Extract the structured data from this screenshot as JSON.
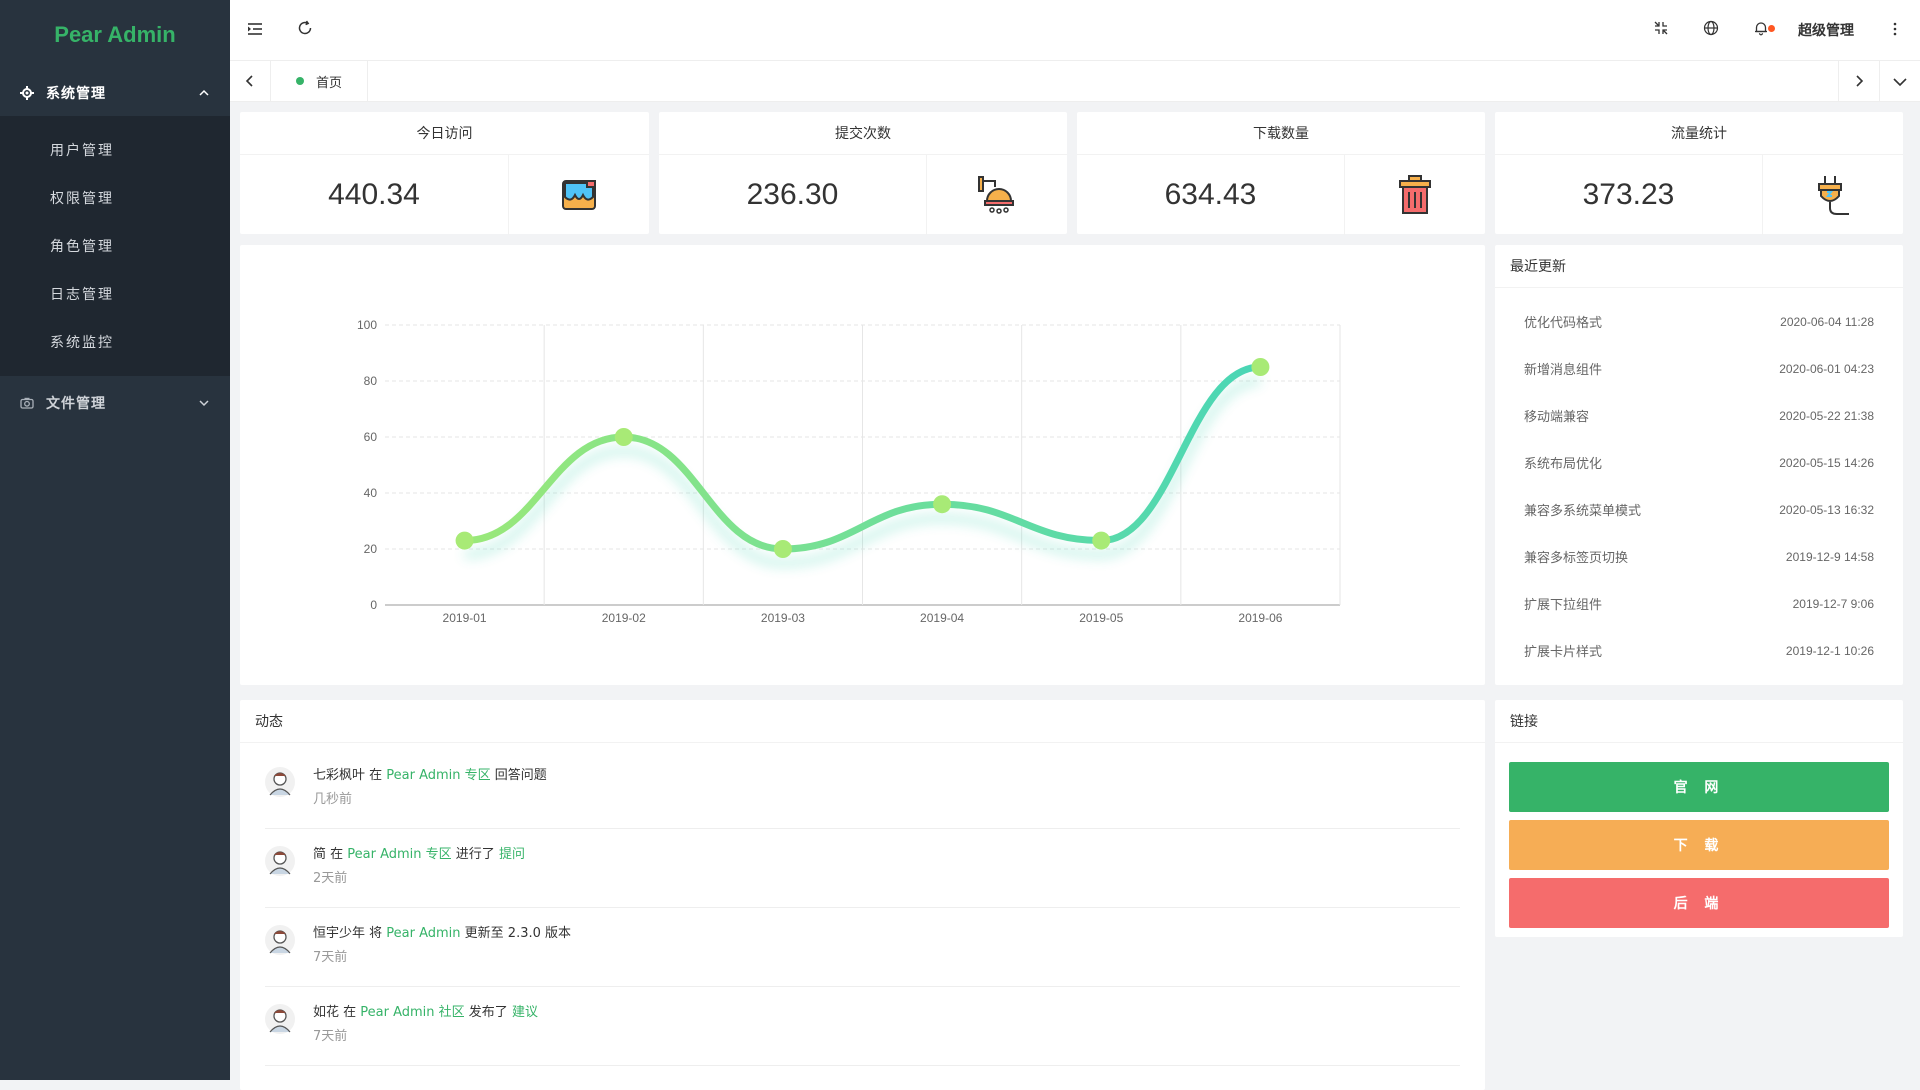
{
  "app": {
    "name": "Pear Admin"
  },
  "sidebar": {
    "groups": [
      {
        "label": "系统管理",
        "expanded": true,
        "icon": "gear-icon",
        "items": [
          {
            "label": "用户管理"
          },
          {
            "label": "权限管理"
          },
          {
            "label": "角色管理"
          },
          {
            "label": "日志管理"
          },
          {
            "label": "系统监控"
          }
        ]
      },
      {
        "label": "文件管理",
        "expanded": false,
        "icon": "camera-icon",
        "items": []
      }
    ]
  },
  "topbar": {
    "icons": [
      "menu-fold-icon",
      "refresh-icon",
      "fullscreen-exit-icon",
      "globe-icon",
      "bell-icon",
      "more-vertical-icon"
    ],
    "user": "超级管理",
    "notification_dot": true
  },
  "tabs": [
    {
      "label": "首页",
      "active": true
    }
  ],
  "stats": [
    {
      "title": "今日访问",
      "value": "440.34",
      "icon": "paint-bucket-icon"
    },
    {
      "title": "提交次数",
      "value": "236.30",
      "icon": "shower-icon"
    },
    {
      "title": "下载数量",
      "value": "634.43",
      "icon": "trash-bin-icon"
    },
    {
      "title": "流量统计",
      "value": "373.23",
      "icon": "power-plug-icon"
    }
  ],
  "chart_data": {
    "type": "line",
    "categories": [
      "2019-01",
      "2019-02",
      "2019-03",
      "2019-04",
      "2019-05",
      "2019-06"
    ],
    "values": [
      23,
      60,
      20,
      36,
      23,
      85
    ],
    "ylim": [
      0,
      100
    ],
    "yticks": [
      0,
      20,
      40,
      60,
      80,
      100
    ],
    "smooth": true,
    "grid": true,
    "colors": {
      "start": "#9ae879",
      "end": "#49d6b6",
      "point": "#a8ea76",
      "grid": "#e6e6e6"
    }
  },
  "updates": {
    "title": "最近更新",
    "rows": [
      {
        "text": "优化代码格式",
        "date": "2020-06-04 11:28"
      },
      {
        "text": "新增消息组件",
        "date": "2020-06-01 04:23"
      },
      {
        "text": "移动端兼容",
        "date": "2020-05-22 21:38"
      },
      {
        "text": "系统布局优化",
        "date": "2020-05-15 14:26"
      },
      {
        "text": "兼容多系统菜单模式",
        "date": "2020-05-13 16:32"
      },
      {
        "text": "兼容多标签页切换",
        "date": "2019-12-9 14:58"
      },
      {
        "text": "扩展下拉组件",
        "date": "2019-12-7 9:06"
      },
      {
        "text": "扩展卡片样式",
        "date": "2019-12-1 10:26"
      }
    ]
  },
  "activity": {
    "title": "动态",
    "items": [
      {
        "user": "七彩枫叶",
        "p1": " 在 ",
        "target": "Pear Admin 专区",
        "p2": " 回答问题",
        "link": "",
        "time": "几秒前"
      },
      {
        "user": "简",
        "p1": " 在 ",
        "target": "Pear Admin 专区",
        "p2": " 进行了 ",
        "link": "提问",
        "time": "2天前"
      },
      {
        "user": "恒宇少年",
        "p1": " 将 ",
        "target": "Pear Admin",
        "p2": " 更新至 2.3.0 版本",
        "link": "",
        "time": "7天前"
      },
      {
        "user": "如花",
        "p1": " 在 ",
        "target": "Pear Admin 社区",
        "p2": " 发布了 ",
        "link": "建议",
        "time": "7天前"
      }
    ]
  },
  "links": {
    "title": "链接",
    "buttons": [
      {
        "label": "官 网",
        "color": "#36b368"
      },
      {
        "label": "下 载",
        "color": "#f6ad55"
      },
      {
        "label": "后 端",
        "color": "#f56c6c"
      }
    ]
  }
}
